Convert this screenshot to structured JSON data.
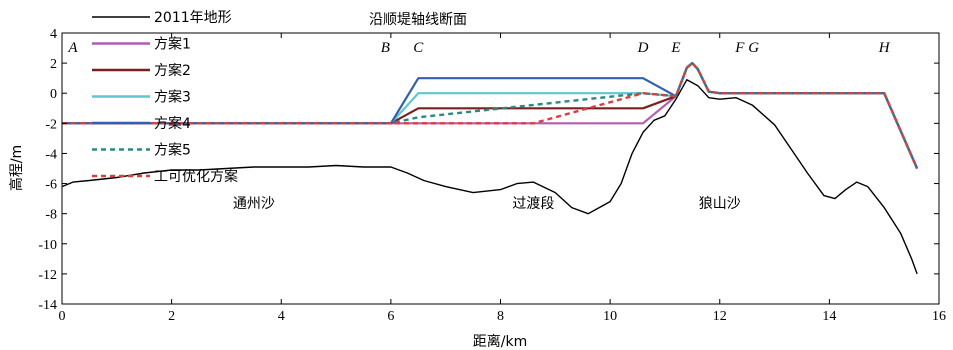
{
  "chart_data": {
    "type": "line",
    "title": "沿顺堤轴线断面",
    "xlabel": "距离/km",
    "ylabel": "高程/m",
    "xlim": [
      0,
      16
    ],
    "ylim": [
      -14,
      4
    ],
    "xticks": [
      0,
      2,
      4,
      6,
      8,
      10,
      12,
      14,
      16
    ],
    "yticks": [
      -14,
      -12,
      -10,
      -8,
      -6,
      -4,
      -2,
      0,
      2,
      4
    ],
    "legend_position": "top-left",
    "point_labels": [
      {
        "text": "A",
        "x": 0.2
      },
      {
        "text": "B",
        "x": 5.9
      },
      {
        "text": "C",
        "x": 6.5
      },
      {
        "text": "D",
        "x": 10.6
      },
      {
        "text": "E",
        "x": 11.2
      },
      {
        "text": "F G",
        "x": 12.5
      },
      {
        "text": "H",
        "x": 15.0
      }
    ],
    "region_labels": [
      {
        "text": "通州沙",
        "x": 3.5,
        "y": -7.5
      },
      {
        "text": "过渡段",
        "x": 8.6,
        "y": -7.5
      },
      {
        "text": "狼山沙",
        "x": 12.0,
        "y": -7.5
      }
    ],
    "series": [
      {
        "name": "2011年地形",
        "color": "#000000",
        "style": "solid",
        "x": [
          0,
          0.2,
          0.5,
          1.0,
          1.5,
          2.0,
          2.5,
          3.0,
          3.5,
          4.0,
          4.5,
          5.0,
          5.5,
          6.0,
          6.3,
          6.6,
          7.0,
          7.5,
          8.0,
          8.3,
          8.6,
          9.0,
          9.3,
          9.6,
          9.8,
          10.0,
          10.2,
          10.4,
          10.6,
          10.8,
          11.0,
          11.2,
          11.4,
          11.6,
          11.8,
          12.0,
          12.3,
          12.6,
          13.0,
          13.3,
          13.6,
          13.9,
          14.1,
          14.3,
          14.5,
          14.7,
          15.0,
          15.3,
          15.5,
          15.6
        ],
        "y": [
          -6.2,
          -5.9,
          -5.8,
          -5.6,
          -5.3,
          -5.1,
          -5.1,
          -5.0,
          -4.9,
          -4.9,
          -4.9,
          -4.8,
          -4.9,
          -4.9,
          -5.3,
          -5.8,
          -6.2,
          -6.6,
          -6.4,
          -6.0,
          -5.9,
          -6.6,
          -7.6,
          -8.0,
          -7.6,
          -7.2,
          -6.0,
          -4.0,
          -2.6,
          -1.8,
          -1.5,
          -0.4,
          0.9,
          0.5,
          -0.3,
          -0.4,
          -0.3,
          -0.8,
          -2.1,
          -3.7,
          -5.3,
          -6.8,
          -7.0,
          -6.4,
          -5.9,
          -6.2,
          -7.6,
          -9.3,
          -11.0,
          -12.0
        ]
      },
      {
        "name": "方案1",
        "color": "#b45bb4",
        "style": "solid",
        "x": [
          0,
          6.0,
          10.6,
          11.2,
          11.4,
          11.5,
          11.6,
          11.8,
          12.0,
          15.0,
          15.6
        ],
        "y": [
          -2,
          -2,
          -2,
          -0.2,
          1.7,
          2.0,
          1.6,
          0.1,
          0.0,
          0.0,
          -5.0
        ]
      },
      {
        "name": "方案2",
        "color": "#7a2020",
        "style": "solid",
        "x": [
          0,
          6.0,
          6.5,
          10.6,
          11.2,
          11.4,
          11.5,
          11.6,
          11.8,
          12.0,
          15.0,
          15.6
        ],
        "y": [
          -2,
          -2,
          -1,
          -1,
          -0.2,
          1.7,
          2.0,
          1.6,
          0.1,
          0.0,
          0.0,
          -5.0
        ]
      },
      {
        "name": "方案3",
        "color": "#5fc6d3",
        "style": "solid",
        "x": [
          0,
          6.0,
          6.5,
          10.6,
          11.2,
          11.4,
          11.5,
          11.6,
          11.8,
          12.0,
          15.0,
          15.6
        ],
        "y": [
          -2,
          -2,
          0,
          0,
          -0.2,
          1.7,
          2.0,
          1.6,
          0.1,
          0.0,
          0.0,
          -5.0
        ]
      },
      {
        "name": "方案4",
        "color": "#3060b0",
        "style": "solid",
        "x": [
          0,
          6.0,
          6.5,
          10.6,
          11.2,
          11.4,
          11.5,
          11.6,
          11.8,
          12.0,
          15.0,
          15.6
        ],
        "y": [
          -2,
          -2,
          1,
          1,
          -0.2,
          1.7,
          2.0,
          1.6,
          0.1,
          0.0,
          0.0,
          -5.0
        ]
      },
      {
        "name": "方案5",
        "color": "#2a8a80",
        "style": "dashed",
        "x": [
          0,
          6.0,
          6.5,
          10.6,
          11.2,
          11.4,
          11.5,
          11.6,
          11.8,
          12.0,
          15.0,
          15.6
        ],
        "y": [
          -2,
          -2,
          -1.6,
          0,
          -0.2,
          1.7,
          2.0,
          1.6,
          0.1,
          0.0,
          0.0,
          -5.0
        ]
      },
      {
        "name": "工可优化方案",
        "color": "#e03c3c",
        "style": "dashed",
        "x": [
          0,
          6.0,
          8.6,
          10.6,
          11.2,
          11.4,
          11.5,
          11.6,
          11.8,
          12.0,
          15.0,
          15.6
        ],
        "y": [
          -2,
          -2,
          -2,
          0,
          -0.2,
          1.7,
          2.0,
          1.6,
          0.1,
          0.0,
          0.0,
          -5.0
        ]
      }
    ]
  }
}
